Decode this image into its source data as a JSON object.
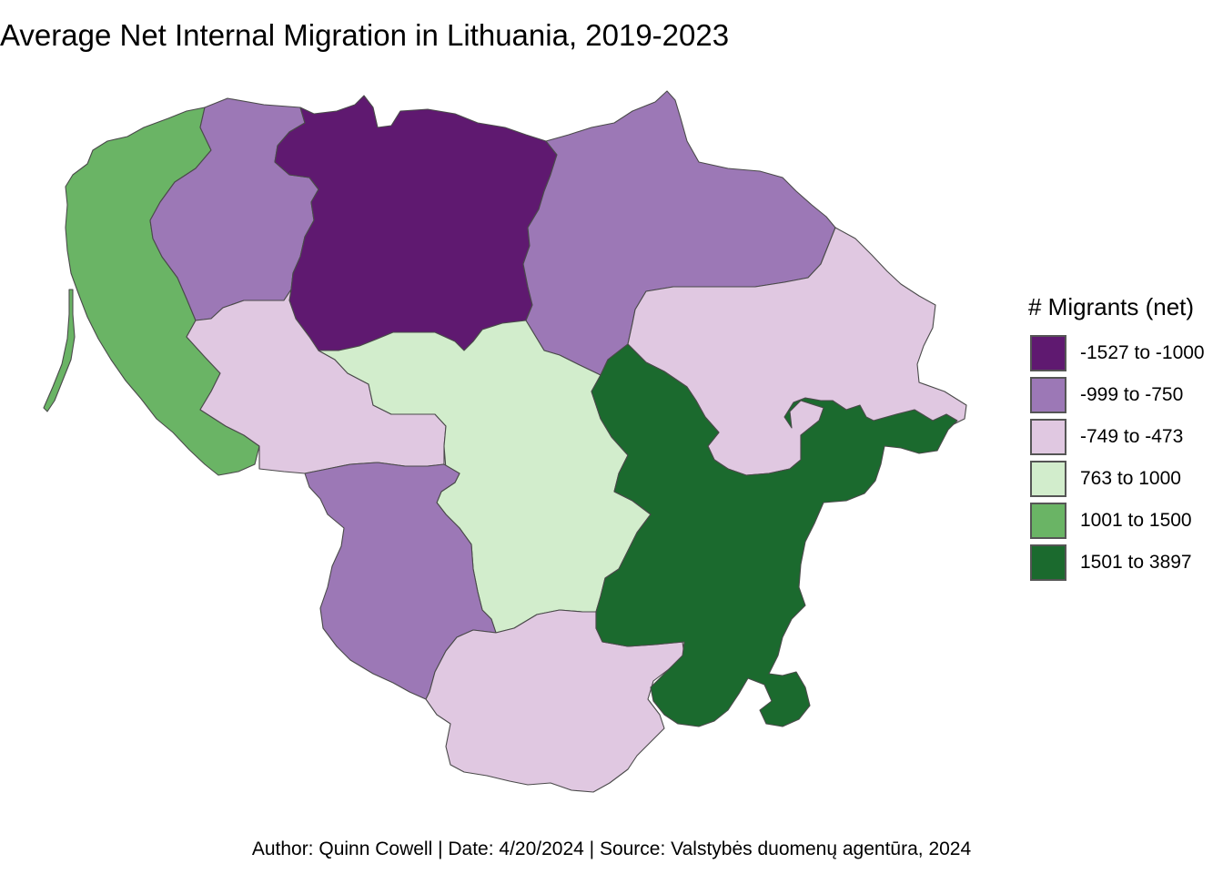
{
  "title": "Average Net Internal Migration in Lithuania, 2019-2023",
  "caption": "Author: Quinn Cowell | Date: 4/20/2024 | Source: Valstybės duomenų agentūra, 2024",
  "legend": {
    "title": "# Migrants (net)",
    "placement": "right",
    "items": [
      {
        "label": "-1527 to -1000",
        "color": "#5f1970"
      },
      {
        "label": "-999 to -750",
        "color": "#9c78b6"
      },
      {
        "label": "-749 to -473",
        "color": "#e0c8e1"
      },
      {
        "label": "763 to 1000",
        "color": "#d2edcc"
      },
      {
        "label": "1001 to 1500",
        "color": "#6ab465"
      },
      {
        "label": "1501 to 3897",
        "color": "#1b6a2e"
      }
    ]
  },
  "regions": [
    {
      "id": "klaipeda-county",
      "class_label": "1001 to 1500"
    },
    {
      "id": "telsiai-county",
      "class_label": "-999 to -750"
    },
    {
      "id": "siauliai-county",
      "class_label": "-1527 to -1000"
    },
    {
      "id": "panevezys-county",
      "class_label": "-999 to -750"
    },
    {
      "id": "utena-county",
      "class_label": "-749 to -473"
    },
    {
      "id": "taurage-county",
      "class_label": "-749 to -473"
    },
    {
      "id": "kaunas-county",
      "class_label": "763 to 1000"
    },
    {
      "id": "marijampole-county",
      "class_label": "-999 to -750"
    },
    {
      "id": "alytus-county",
      "class_label": "-749 to -473"
    },
    {
      "id": "vilnius-county",
      "class_label": "1501 to 3897"
    }
  ]
}
